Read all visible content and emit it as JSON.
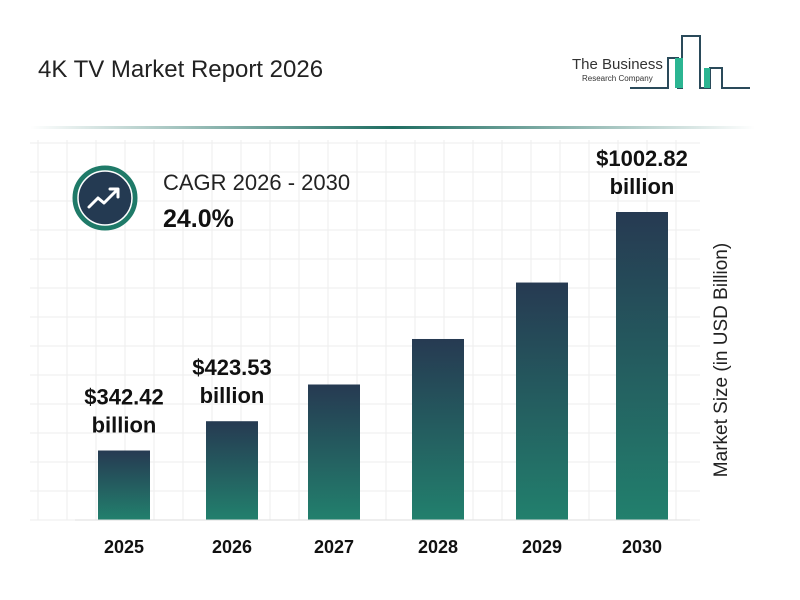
{
  "header": {
    "title": "4K TV Market Report 2026"
  },
  "logo": {
    "line1": "The Business",
    "line2": "Research Company"
  },
  "cagr": {
    "label": "CAGR 2026 - 2030",
    "value": "24.0%",
    "icon": "trend-up-arrow-icon"
  },
  "colors": {
    "bar_top": "#263a52",
    "bar_bottom": "#22806d",
    "accent": "#1f7a68",
    "icon_bg": "#243a52"
  },
  "chart_data": {
    "type": "bar",
    "title": "4K TV Market Report 2026",
    "categories": [
      "2025",
      "2026",
      "2027",
      "2028",
      "2029",
      "2030"
    ],
    "values": [
      342.42,
      423.53,
      525.2,
      651.2,
      807.5,
      1002.82
    ],
    "data_labels": [
      {
        "index": 0,
        "line1": "$342.42",
        "line2": "billion"
      },
      {
        "index": 1,
        "line1": "$423.53",
        "line2": "billion"
      },
      {
        "index": 5,
        "line1": "$1002.82",
        "line2": "billion"
      }
    ],
    "xlabel": "",
    "ylabel": "Market Size (in USD Billion)",
    "ylim": [
      150,
      1050
    ],
    "grid": true,
    "legend": "none"
  }
}
